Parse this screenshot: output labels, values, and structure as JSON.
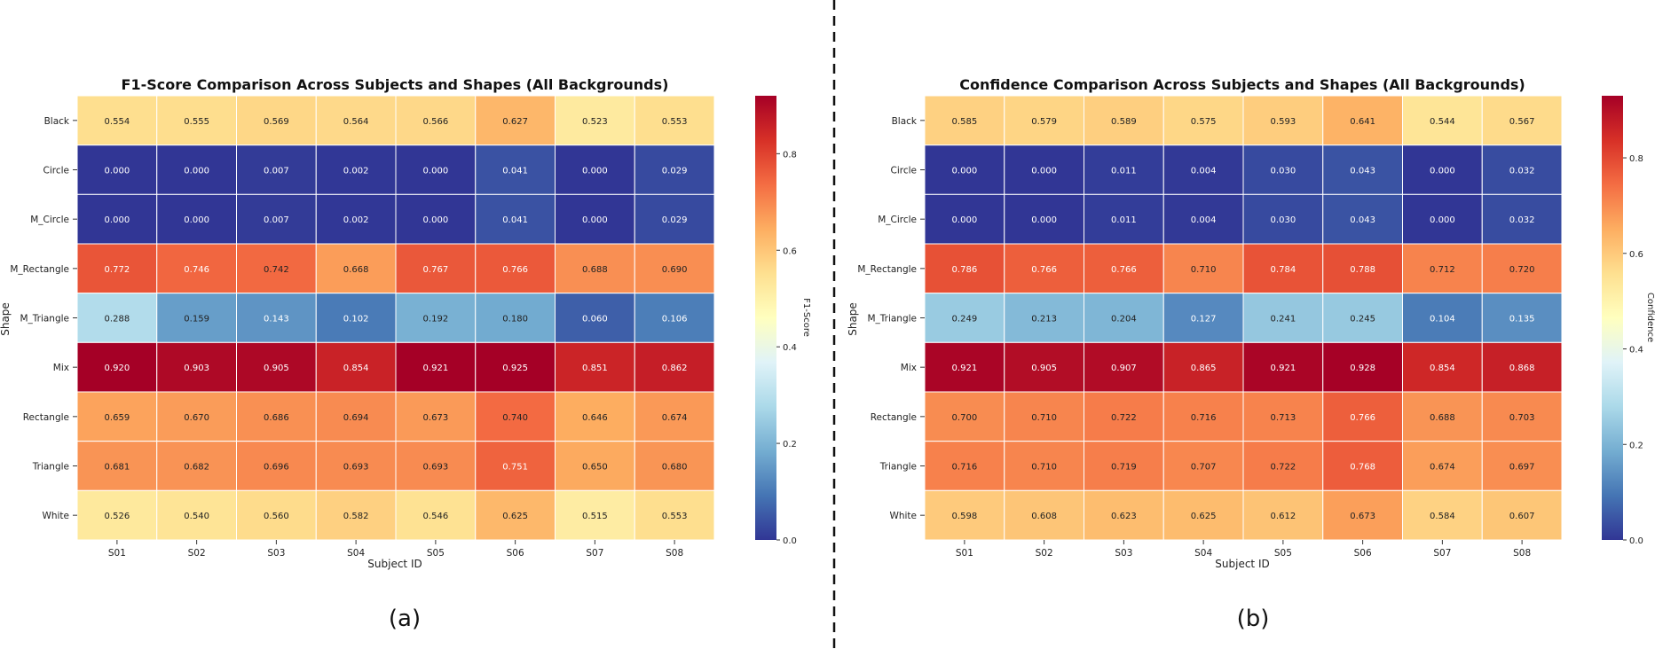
{
  "chart_data": [
    {
      "type": "heatmap",
      "panel_label": "(a)",
      "title": "F1-Score Comparison Across Subjects and Shapes (All Backgrounds)",
      "xlabel": "Subject ID",
      "ylabel": "Shape",
      "colorbar_label": "F1-Score",
      "colorbar_range": [
        0.0,
        0.92
      ],
      "colorbar_ticks": [
        "0.0",
        "0.2",
        "0.4",
        "0.6",
        "0.8"
      ],
      "x_categories": [
        "S01",
        "S02",
        "S03",
        "S04",
        "S05",
        "S06",
        "S07",
        "S08"
      ],
      "y_categories": [
        "Black",
        "Circle",
        "M_Circle",
        "M_Rectangle",
        "M_Triangle",
        "Mix",
        "Rectangle",
        "Triangle",
        "White"
      ],
      "values": [
        [
          "0.554",
          "0.555",
          "0.569",
          "0.564",
          "0.566",
          "0.627",
          "0.523",
          "0.553"
        ],
        [
          "0.000",
          "0.000",
          "0.007",
          "0.002",
          "0.000",
          "0.041",
          "0.000",
          "0.029"
        ],
        [
          "0.000",
          "0.000",
          "0.007",
          "0.002",
          "0.000",
          "0.041",
          "0.000",
          "0.029"
        ],
        [
          "0.772",
          "0.746",
          "0.742",
          "0.668",
          "0.767",
          "0.766",
          "0.688",
          "0.690"
        ],
        [
          "0.288",
          "0.159",
          "0.143",
          "0.102",
          "0.192",
          "0.180",
          "0.060",
          "0.106"
        ],
        [
          "0.920",
          "0.903",
          "0.905",
          "0.854",
          "0.921",
          "0.925",
          "0.851",
          "0.862"
        ],
        [
          "0.659",
          "0.670",
          "0.686",
          "0.694",
          "0.673",
          "0.740",
          "0.646",
          "0.674"
        ],
        [
          "0.681",
          "0.682",
          "0.696",
          "0.693",
          "0.693",
          "0.751",
          "0.650",
          "0.680"
        ],
        [
          "0.526",
          "0.540",
          "0.560",
          "0.582",
          "0.546",
          "0.625",
          "0.515",
          "0.553"
        ]
      ]
    },
    {
      "type": "heatmap",
      "panel_label": "(b)",
      "title": "Confidence Comparison Across Subjects and Shapes (All Backgrounds)",
      "xlabel": "Subject ID",
      "ylabel": "Shape",
      "colorbar_label": "Confidence",
      "colorbar_range": [
        0.0,
        0.93
      ],
      "colorbar_ticks": [
        "0.0",
        "0.2",
        "0.4",
        "0.6",
        "0.8"
      ],
      "x_categories": [
        "S01",
        "S02",
        "S03",
        "S04",
        "S05",
        "S06",
        "S07",
        "S08"
      ],
      "y_categories": [
        "Black",
        "Circle",
        "M_Circle",
        "M_Rectangle",
        "M_Triangle",
        "Mix",
        "Rectangle",
        "Triangle",
        "White"
      ],
      "values": [
        [
          "0.585",
          "0.579",
          "0.589",
          "0.575",
          "0.593",
          "0.641",
          "0.544",
          "0.567"
        ],
        [
          "0.000",
          "0.000",
          "0.011",
          "0.004",
          "0.030",
          "0.043",
          "0.000",
          "0.032"
        ],
        [
          "0.000",
          "0.000",
          "0.011",
          "0.004",
          "0.030",
          "0.043",
          "0.000",
          "0.032"
        ],
        [
          "0.786",
          "0.766",
          "0.766",
          "0.710",
          "0.784",
          "0.788",
          "0.712",
          "0.720"
        ],
        [
          "0.249",
          "0.213",
          "0.204",
          "0.127",
          "0.241",
          "0.245",
          "0.104",
          "0.135"
        ],
        [
          "0.921",
          "0.905",
          "0.907",
          "0.865",
          "0.921",
          "0.928",
          "0.854",
          "0.868"
        ],
        [
          "0.700",
          "0.710",
          "0.722",
          "0.716",
          "0.713",
          "0.766",
          "0.688",
          "0.703"
        ],
        [
          "0.716",
          "0.710",
          "0.719",
          "0.707",
          "0.722",
          "0.768",
          "0.674",
          "0.697"
        ],
        [
          "0.598",
          "0.608",
          "0.623",
          "0.625",
          "0.612",
          "0.673",
          "0.584",
          "0.607"
        ]
      ]
    }
  ]
}
